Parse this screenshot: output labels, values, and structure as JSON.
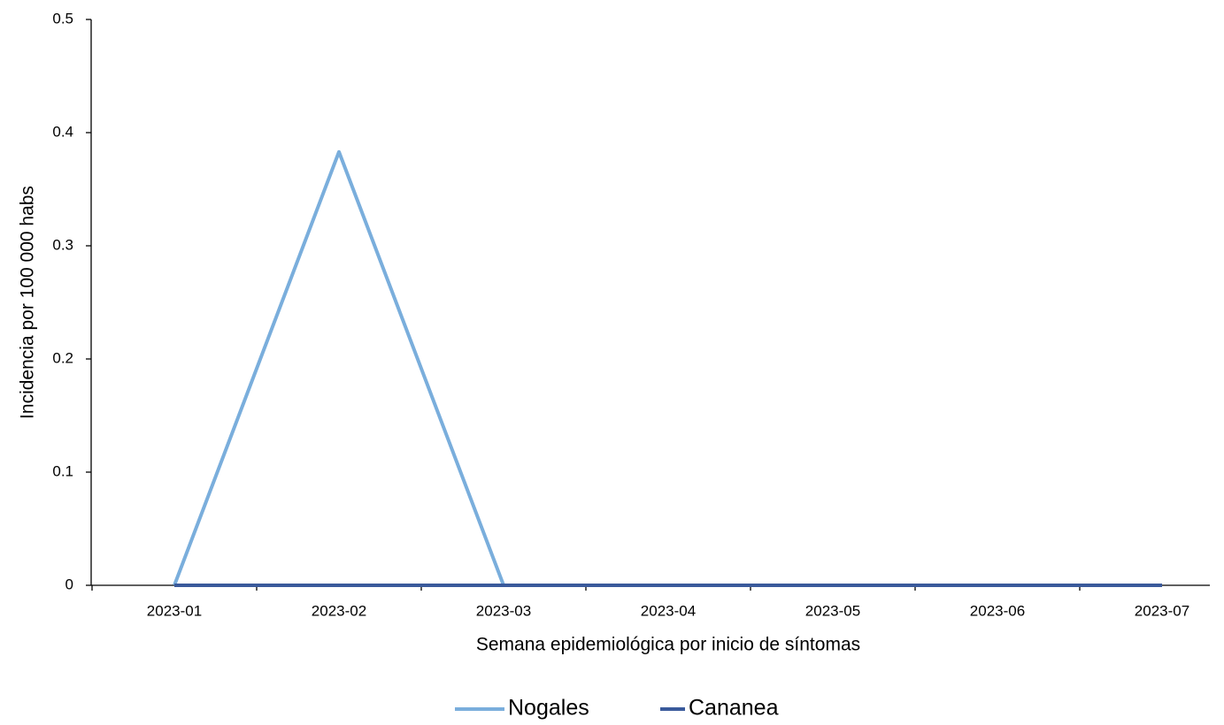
{
  "chart_data": {
    "type": "line",
    "categories": [
      "2023-01",
      "2023-02",
      "2023-03",
      "2023-04",
      "2023-05",
      "2023-06",
      "2023-07"
    ],
    "series": [
      {
        "name": "Nogales",
        "color": "#7aaedc",
        "values": [
          0,
          0.383,
          0,
          0,
          0,
          0,
          0
        ]
      },
      {
        "name": "Cananea",
        "color": "#3a5a9b",
        "values": [
          0,
          0,
          0,
          0,
          0,
          0,
          0
        ]
      }
    ],
    "ylim": [
      0,
      0.5
    ],
    "yticks": [
      0,
      0.1,
      0.2,
      0.3,
      0.4,
      0.5
    ],
    "xlabel": "Semana epidemiológica por inicio de síntomas",
    "ylabel": "Incidencia por 100 000 habs",
    "grid": false,
    "legend": "bottom"
  }
}
